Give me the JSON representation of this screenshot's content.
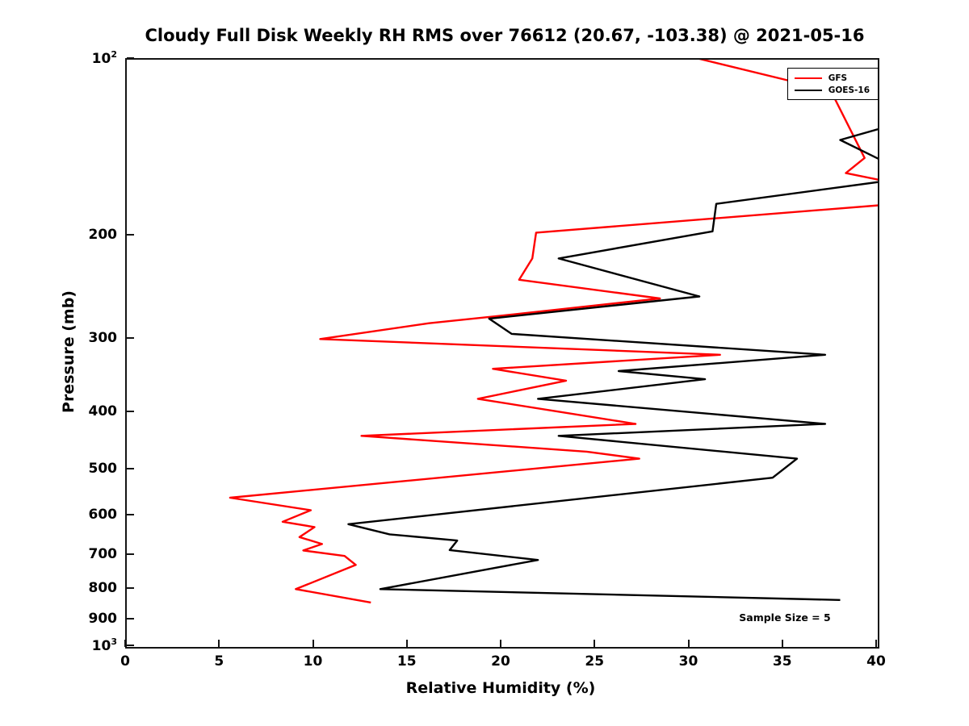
{
  "title": "Cloudy Full Disk Weekly RH RMS over 76612 (20.67, -103.38) @ 2021-05-16",
  "chart_data": {
    "type": "line",
    "title": "Cloudy Full Disk Weekly RH RMS over 76612 (20.67, -103.38) @ 2021-05-16",
    "xlabel": "Relative Humidity (%)",
    "ylabel": "Pressure (mb)",
    "xlim": [
      0,
      40
    ],
    "ylim": [
      100,
      1000
    ],
    "y_scale": "log",
    "y_direction": "pressure increases downward",
    "grid": false,
    "x_ticks": [
      0,
      5,
      10,
      15,
      20,
      25,
      30,
      35,
      40
    ],
    "y_ticks": [
      100,
      200,
      300,
      400,
      500,
      600,
      700,
      800,
      900,
      1000
    ],
    "y_tick_labels": [
      "10^2",
      "200",
      "300",
      "400",
      "500",
      "600",
      "700",
      "800",
      "900",
      "10^3"
    ],
    "legend": {
      "position": "northeast",
      "entries": [
        {
          "label": "GFS",
          "color": "#ff0000"
        },
        {
          "label": "GOES-16",
          "color": "#000000"
        }
      ]
    },
    "annotation": "Sample Size = 5",
    "series": [
      {
        "name": "GFS",
        "color": "#ff0000",
        "points_rh_pressure": [
          [
            29.0,
            97
          ],
          [
            37.5,
            113
          ],
          [
            39.3,
            147
          ],
          [
            38.3,
            156
          ],
          [
            40.0,
            160
          ],
          [
            41.5,
            167
          ],
          [
            42.0,
            175
          ],
          [
            21.8,
            197
          ],
          [
            21.6,
            218
          ],
          [
            20.9,
            237
          ],
          [
            28.4,
            255
          ],
          [
            19.4,
            274
          ],
          [
            16.1,
            281
          ],
          [
            10.3,
            299
          ],
          [
            31.6,
            318
          ],
          [
            19.5,
            336
          ],
          [
            23.4,
            352
          ],
          [
            18.7,
            378
          ],
          [
            27.1,
            417
          ],
          [
            12.5,
            437
          ],
          [
            24.5,
            465
          ],
          [
            27.3,
            478
          ],
          [
            5.5,
            557
          ],
          [
            9.8,
            585
          ],
          [
            8.3,
            612
          ],
          [
            10.0,
            625
          ],
          [
            9.2,
            650
          ],
          [
            10.4,
            668
          ],
          [
            9.4,
            685
          ],
          [
            11.6,
            700
          ],
          [
            12.2,
            725
          ],
          [
            9.0,
            797
          ],
          [
            13.0,
            840
          ]
        ]
      },
      {
        "name": "GOES-16",
        "color": "#000000",
        "points_rh_pressure": [
          [
            40.5,
            130
          ],
          [
            38.0,
            137
          ],
          [
            40.5,
            150
          ],
          [
            41.0,
            160
          ],
          [
            31.4,
            176
          ],
          [
            31.2,
            196
          ],
          [
            23.0,
            218
          ],
          [
            30.5,
            253
          ],
          [
            19.3,
            276
          ],
          [
            20.5,
            293
          ],
          [
            37.2,
            318
          ],
          [
            26.2,
            339
          ],
          [
            30.8,
            350
          ],
          [
            21.9,
            378
          ],
          [
            37.2,
            417
          ],
          [
            23.0,
            437
          ],
          [
            35.7,
            478
          ],
          [
            34.4,
            515
          ],
          [
            11.8,
            618
          ],
          [
            14.0,
            643
          ],
          [
            17.6,
            659
          ],
          [
            17.2,
            684
          ],
          [
            21.9,
            711
          ],
          [
            13.5,
            797
          ],
          [
            38.0,
            832
          ]
        ]
      }
    ]
  }
}
